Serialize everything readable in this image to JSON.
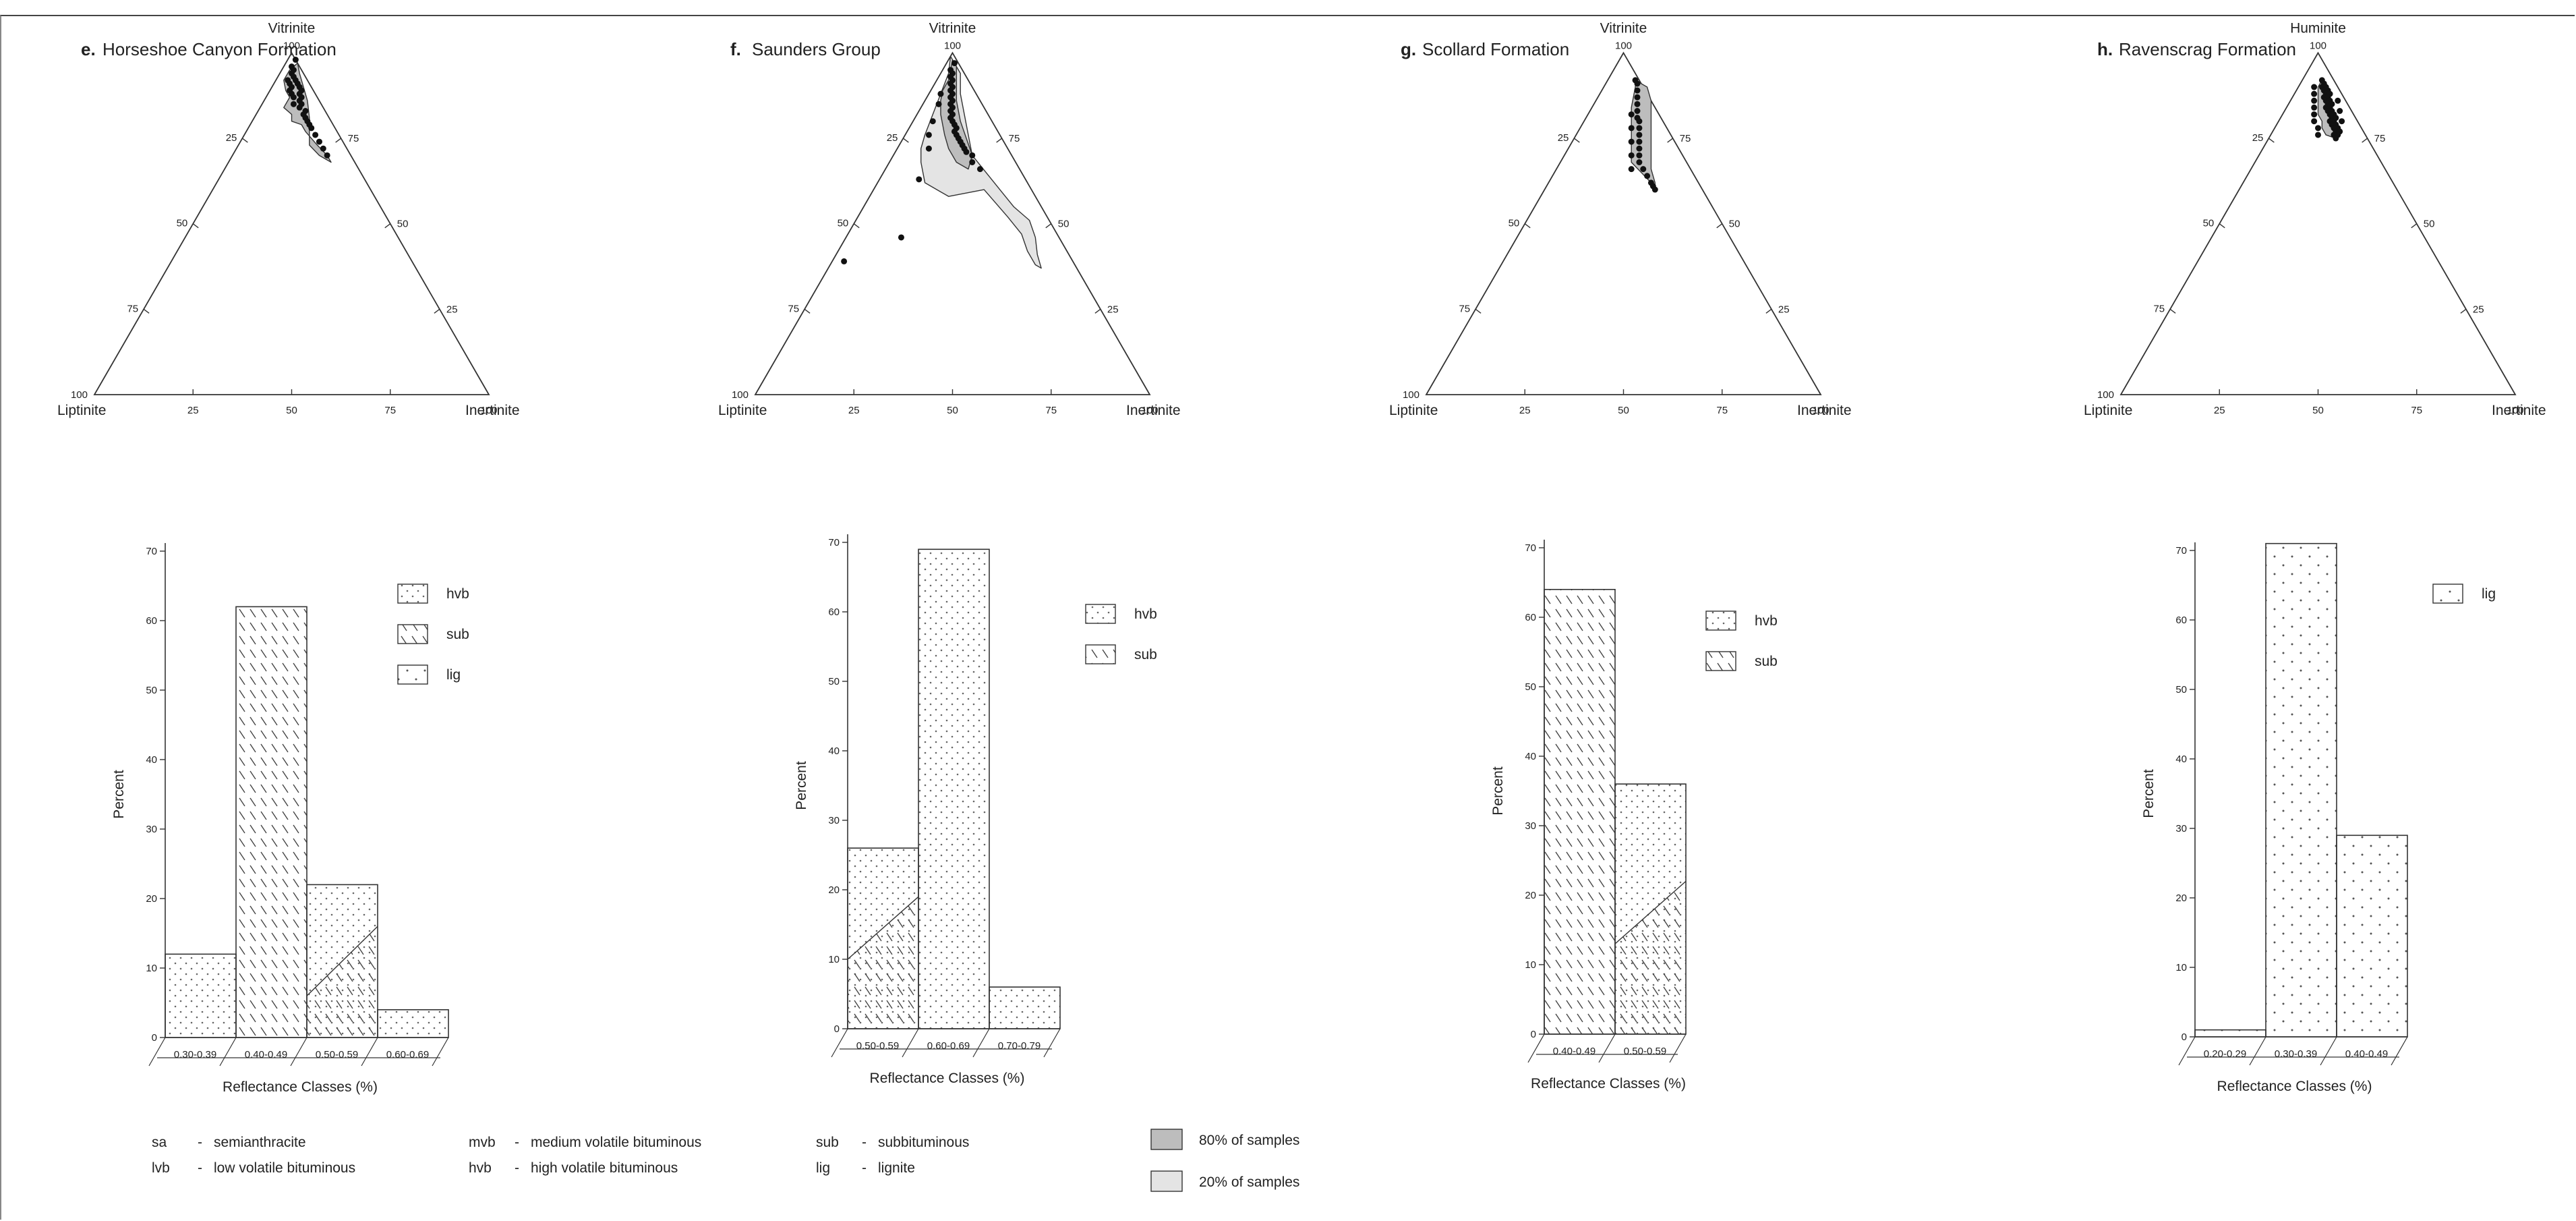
{
  "panels": [
    {
      "letter": "e.",
      "title": "Horseshoe Canyon Formation",
      "ternary": {
        "top": "Vitrinite",
        "left": "Liptinite",
        "right": "Inertinite",
        "ticks": [
          "100",
          "75",
          "50",
          "25"
        ],
        "region80": [
          [
            97,
            3
          ],
          [
            95,
            2
          ],
          [
            92,
            2
          ],
          [
            89,
            4
          ],
          [
            87,
            6
          ],
          [
            84,
            6
          ],
          [
            82,
            9
          ],
          [
            80,
            10
          ],
          [
            79,
            13
          ],
          [
            77,
            15
          ],
          [
            73,
            20
          ],
          [
            70,
            24
          ],
          [
            68,
            26
          ],
          [
            70,
            22
          ],
          [
            73,
            18
          ],
          [
            77,
            16
          ],
          [
            81,
            14
          ],
          [
            86,
            11
          ],
          [
            90,
            8
          ],
          [
            94,
            5
          ]
        ],
        "points": [
          [
            98,
            2
          ],
          [
            96,
            2
          ],
          [
            95,
            3
          ],
          [
            94,
            3
          ],
          [
            93,
            4
          ],
          [
            92,
            3
          ],
          [
            92,
            5
          ],
          [
            91,
            4
          ],
          [
            91,
            6
          ],
          [
            90,
            5
          ],
          [
            90,
            7
          ],
          [
            89,
            5
          ],
          [
            89,
            8
          ],
          [
            88,
            6
          ],
          [
            88,
            8
          ],
          [
            87,
            7
          ],
          [
            87,
            9
          ],
          [
            86,
            9
          ],
          [
            85,
            8
          ],
          [
            85,
            10
          ],
          [
            84,
            10
          ],
          [
            83,
            12
          ],
          [
            82,
            12
          ],
          [
            81,
            13
          ],
          [
            80,
            14
          ],
          [
            79,
            15
          ],
          [
            78,
            16
          ],
          [
            76,
            18
          ],
          [
            74,
            20
          ],
          [
            72,
            22
          ],
          [
            70,
            24
          ]
        ]
      },
      "bar": {
        "categories": [
          "0.30-0.39",
          "0.40-0.49",
          "0.50-0.59",
          "0.60-0.69"
        ],
        "values": [
          12,
          62,
          22,
          4
        ],
        "ymax": 70,
        "yticks": [
          "0",
          "10",
          "20",
          "30",
          "40",
          "50",
          "60",
          "70"
        ],
        "ylabel": "Percent",
        "xlabel": "Reflectance Classes (%)",
        "legend": [
          "hvb",
          "sub",
          "lig"
        ]
      }
    },
    {
      "letter": "f.",
      "title": "Saunders Group",
      "ternary": {
        "top": "Vitrinite",
        "left": "Liptinite",
        "right": "Inertinite",
        "ticks": [
          "100",
          "75",
          "50",
          "25"
        ],
        "region80": [
          [
            98,
            1
          ],
          [
            95,
            2
          ],
          [
            92,
            3
          ],
          [
            89,
            3
          ],
          [
            86,
            4
          ],
          [
            82,
            6
          ],
          [
            79,
            8
          ],
          [
            76,
            10
          ],
          [
            72,
            13
          ],
          [
            68,
            17
          ],
          [
            66,
            21
          ],
          [
            70,
            20
          ],
          [
            75,
            16
          ],
          [
            80,
            12
          ],
          [
            86,
            8
          ],
          [
            92,
            5
          ],
          [
            96,
            3
          ]
        ],
        "region20": [
          [
            99,
            0
          ],
          [
            94,
            2
          ],
          [
            88,
            3
          ],
          [
            82,
            4
          ],
          [
            76,
            5
          ],
          [
            72,
            6
          ],
          [
            68,
            8
          ],
          [
            62,
            12
          ],
          [
            58,
            20
          ],
          [
            60,
            28
          ],
          [
            56,
            33
          ],
          [
            52,
            38
          ],
          [
            47,
            44
          ],
          [
            42,
            48
          ],
          [
            38,
            52
          ],
          [
            37,
            54
          ],
          [
            41,
            51
          ],
          [
            46,
            48
          ],
          [
            51,
            44
          ],
          [
            55,
            38
          ],
          [
            60,
            32
          ],
          [
            65,
            26
          ],
          [
            70,
            20
          ],
          [
            76,
            16
          ],
          [
            82,
            12
          ],
          [
            88,
            8
          ],
          [
            94,
            5
          ]
        ],
        "points": [
          [
            97,
            2
          ],
          [
            95,
            2
          ],
          [
            94,
            3
          ],
          [
            93,
            3
          ],
          [
            92,
            4
          ],
          [
            91,
            4
          ],
          [
            90,
            5
          ],
          [
            89,
            5
          ],
          [
            88,
            6
          ],
          [
            87,
            6
          ],
          [
            86,
            7
          ],
          [
            85,
            7
          ],
          [
            84,
            8
          ],
          [
            83,
            8
          ],
          [
            82,
            9
          ],
          [
            81,
            9
          ],
          [
            80,
            10
          ],
          [
            79,
            11
          ],
          [
            78,
            12
          ],
          [
            77,
            12
          ],
          [
            76,
            13
          ],
          [
            75,
            14
          ],
          [
            74,
            15
          ],
          [
            73,
            16
          ],
          [
            72,
            17
          ],
          [
            71,
            18
          ],
          [
            70,
            20
          ],
          [
            68,
            21
          ],
          [
            66,
            24
          ],
          [
            88,
            3
          ],
          [
            85,
            4
          ],
          [
            80,
            5
          ],
          [
            76,
            6
          ],
          [
            72,
            8
          ],
          [
            63,
            10
          ],
          [
            46,
            14
          ],
          [
            39,
            3
          ]
        ]
      },
      "bar": {
        "categories": [
          "0.50-0.59",
          "0.60-0.69",
          "0.70-0.79"
        ],
        "values": [
          26,
          69,
          6
        ],
        "ymax": 70,
        "yticks": [
          "0",
          "10",
          "20",
          "30",
          "40",
          "50",
          "60",
          "70"
        ],
        "ylabel": "Percent",
        "xlabel": "Reflectance Classes (%)",
        "legend": [
          "hvb",
          "sub"
        ]
      }
    },
    {
      "letter": "g.",
      "title": "Scollard Formation",
      "ternary": {
        "top": "Vitrinite",
        "left": "Liptinite",
        "right": "Inertinite",
        "ticks": [
          "100",
          "75",
          "50",
          "25"
        ],
        "region80": [
          [
            92,
            7
          ],
          [
            90,
            8
          ],
          [
            87,
            9
          ],
          [
            84,
            10
          ],
          [
            80,
            12
          ],
          [
            76,
            14
          ],
          [
            72,
            16
          ],
          [
            68,
            18
          ],
          [
            65,
            22
          ],
          [
            62,
            26
          ],
          [
            60,
            28
          ],
          [
            62,
            27
          ],
          [
            66,
            24
          ],
          [
            70,
            22
          ],
          [
            74,
            20
          ],
          [
            78,
            18
          ],
          [
            82,
            16
          ],
          [
            86,
            14
          ],
          [
            90,
            11
          ]
        ],
        "points": [
          [
            92,
            7
          ],
          [
            91,
            8
          ],
          [
            89,
            9
          ],
          [
            87,
            10
          ],
          [
            85,
            11
          ],
          [
            83,
            12
          ],
          [
            81,
            13
          ],
          [
            80,
            14
          ],
          [
            78,
            15
          ],
          [
            76,
            16
          ],
          [
            74,
            17
          ],
          [
            72,
            18
          ],
          [
            70,
            19
          ],
          [
            68,
            20
          ],
          [
            66,
            22
          ],
          [
            64,
            24
          ],
          [
            62,
            26
          ],
          [
            61,
            27
          ],
          [
            60,
            28
          ],
          [
            82,
            11
          ],
          [
            78,
            13
          ],
          [
            74,
            15
          ],
          [
            70,
            17
          ],
          [
            66,
            19
          ]
        ]
      },
      "bar": {
        "categories": [
          "0.40-0.49",
          "0.50-0.59"
        ],
        "values": [
          64,
          36
        ],
        "ymax": 70,
        "yticks": [
          "0",
          "10",
          "20",
          "30",
          "40",
          "50",
          "60",
          "70"
        ],
        "ylabel": "Percent",
        "xlabel": "Reflectance Classes (%)",
        "legend": [
          "hvb",
          "sub"
        ]
      }
    },
    {
      "letter": "h.",
      "title": "Ravenscrag Formation",
      "ternary": {
        "top": "Huminite",
        "left": "Liptinite",
        "right": "Inertinite",
        "ticks": [
          "100",
          "75",
          "50",
          "25"
        ],
        "region80": [
          [
            92,
            5
          ],
          [
            90,
            7
          ],
          [
            88,
            8
          ],
          [
            86,
            10
          ],
          [
            84,
            11
          ],
          [
            82,
            12
          ],
          [
            80,
            13
          ],
          [
            78,
            15
          ],
          [
            76,
            16
          ],
          [
            75,
            17
          ],
          [
            76,
            14
          ],
          [
            78,
            12
          ],
          [
            80,
            11
          ],
          [
            82,
            9
          ],
          [
            84,
            8
          ],
          [
            86,
            7
          ],
          [
            88,
            6
          ],
          [
            90,
            5
          ]
        ],
        "points": [
          [
            92,
            5
          ],
          [
            91,
            6
          ],
          [
            90,
            6
          ],
          [
            90,
            7
          ],
          [
            89,
            7
          ],
          [
            89,
            8
          ],
          [
            88,
            8
          ],
          [
            88,
            9
          ],
          [
            87,
            8
          ],
          [
            87,
            9
          ],
          [
            86,
            9
          ],
          [
            86,
            10
          ],
          [
            85,
            10
          ],
          [
            85,
            11
          ],
          [
            84,
            10
          ],
          [
            84,
            11
          ],
          [
            83,
            11
          ],
          [
            83,
            12
          ],
          [
            82,
            12
          ],
          [
            82,
            13
          ],
          [
            81,
            13
          ],
          [
            81,
            14
          ],
          [
            80,
            13
          ],
          [
            80,
            14
          ],
          [
            79,
            14
          ],
          [
            79,
            15
          ],
          [
            78,
            15
          ],
          [
            78,
            16
          ],
          [
            77,
            16
          ],
          [
            77,
            17
          ],
          [
            76,
            17
          ],
          [
            76,
            16
          ],
          [
            75,
            17
          ],
          [
            88,
            5
          ],
          [
            86,
            6
          ],
          [
            84,
            7
          ],
          [
            82,
            8
          ],
          [
            80,
            9
          ],
          [
            78,
            11
          ],
          [
            76,
            12
          ],
          [
            90,
            4
          ],
          [
            86,
            12
          ],
          [
            83,
            14
          ],
          [
            80,
            16
          ]
        ]
      },
      "bar": {
        "categories": [
          "0.20-0.29",
          "0.30-0.39",
          "0.40-0.49"
        ],
        "values": [
          1,
          71,
          29
        ],
        "ymax": 70,
        "yticks": [
          "0",
          "10",
          "20",
          "30",
          "40",
          "50",
          "60",
          "70"
        ],
        "ylabel": "Percent",
        "xlabel": "Reflectance Classes (%)",
        "legend": [
          "lig"
        ]
      }
    }
  ],
  "footer": {
    "abbreviations": [
      {
        "abbr": "sa",
        "dash": "-",
        "text": "semianthracite"
      },
      {
        "abbr": "lvb",
        "dash": "-",
        "text": "low volatile bituminous"
      },
      {
        "abbr": "mvb",
        "dash": "-",
        "text": "medium volatile bituminous"
      },
      {
        "abbr": "hvb",
        "dash": "-",
        "text": "high volatile bituminous"
      },
      {
        "abbr": "sub",
        "dash": "-",
        "text": "subbituminous"
      },
      {
        "abbr": "lig",
        "dash": "-",
        "text": "lignite"
      }
    ],
    "envelopes": [
      {
        "label": "80% of samples",
        "color": "#bdbdbd"
      },
      {
        "label": "20% of samples",
        "color": "#e4e4e4"
      }
    ]
  },
  "chart_data": [
    {
      "type": "scatter",
      "title": "Horseshoe Canyon Formation",
      "system": "ternary",
      "vertices": [
        "Vitrinite",
        "Liptinite",
        "Inertinite"
      ],
      "axis_range": [
        0,
        100
      ]
    },
    {
      "type": "bar",
      "title": "Horseshoe Canyon Formation",
      "categories": [
        "0.30-0.39",
        "0.40-0.49",
        "0.50-0.59",
        "0.60-0.69"
      ],
      "values": [
        12,
        62,
        22,
        4
      ],
      "xlabel": "Reflectance Classes (%)",
      "ylabel": "Percent",
      "ylim": [
        0,
        70
      ]
    },
    {
      "type": "scatter",
      "title": "Saunders Group",
      "system": "ternary",
      "vertices": [
        "Vitrinite",
        "Liptinite",
        "Inertinite"
      ],
      "axis_range": [
        0,
        100
      ]
    },
    {
      "type": "bar",
      "title": "Saunders Group",
      "categories": [
        "0.50-0.59",
        "0.60-0.69",
        "0.70-0.79"
      ],
      "values": [
        26,
        69,
        6
      ],
      "xlabel": "Reflectance Classes (%)",
      "ylabel": "Percent",
      "ylim": [
        0,
        70
      ]
    },
    {
      "type": "scatter",
      "title": "Scollard Formation",
      "system": "ternary",
      "vertices": [
        "Vitrinite",
        "Liptinite",
        "Inertinite"
      ],
      "axis_range": [
        0,
        100
      ]
    },
    {
      "type": "bar",
      "title": "Scollard Formation",
      "categories": [
        "0.40-0.49",
        "0.50-0.59"
      ],
      "values": [
        64,
        36
      ],
      "xlabel": "Reflectance Classes (%)",
      "ylabel": "Percent",
      "ylim": [
        0,
        70
      ]
    },
    {
      "type": "scatter",
      "title": "Ravenscrag Formation",
      "system": "ternary",
      "vertices": [
        "Huminite",
        "Liptinite",
        "Inertinite"
      ],
      "axis_range": [
        0,
        100
      ]
    },
    {
      "type": "bar",
      "title": "Ravenscrag Formation",
      "categories": [
        "0.20-0.29",
        "0.30-0.39",
        "0.40-0.49"
      ],
      "values": [
        1,
        71,
        29
      ],
      "xlabel": "Reflectance Classes (%)",
      "ylabel": "Percent",
      "ylim": [
        0,
        70
      ]
    }
  ]
}
